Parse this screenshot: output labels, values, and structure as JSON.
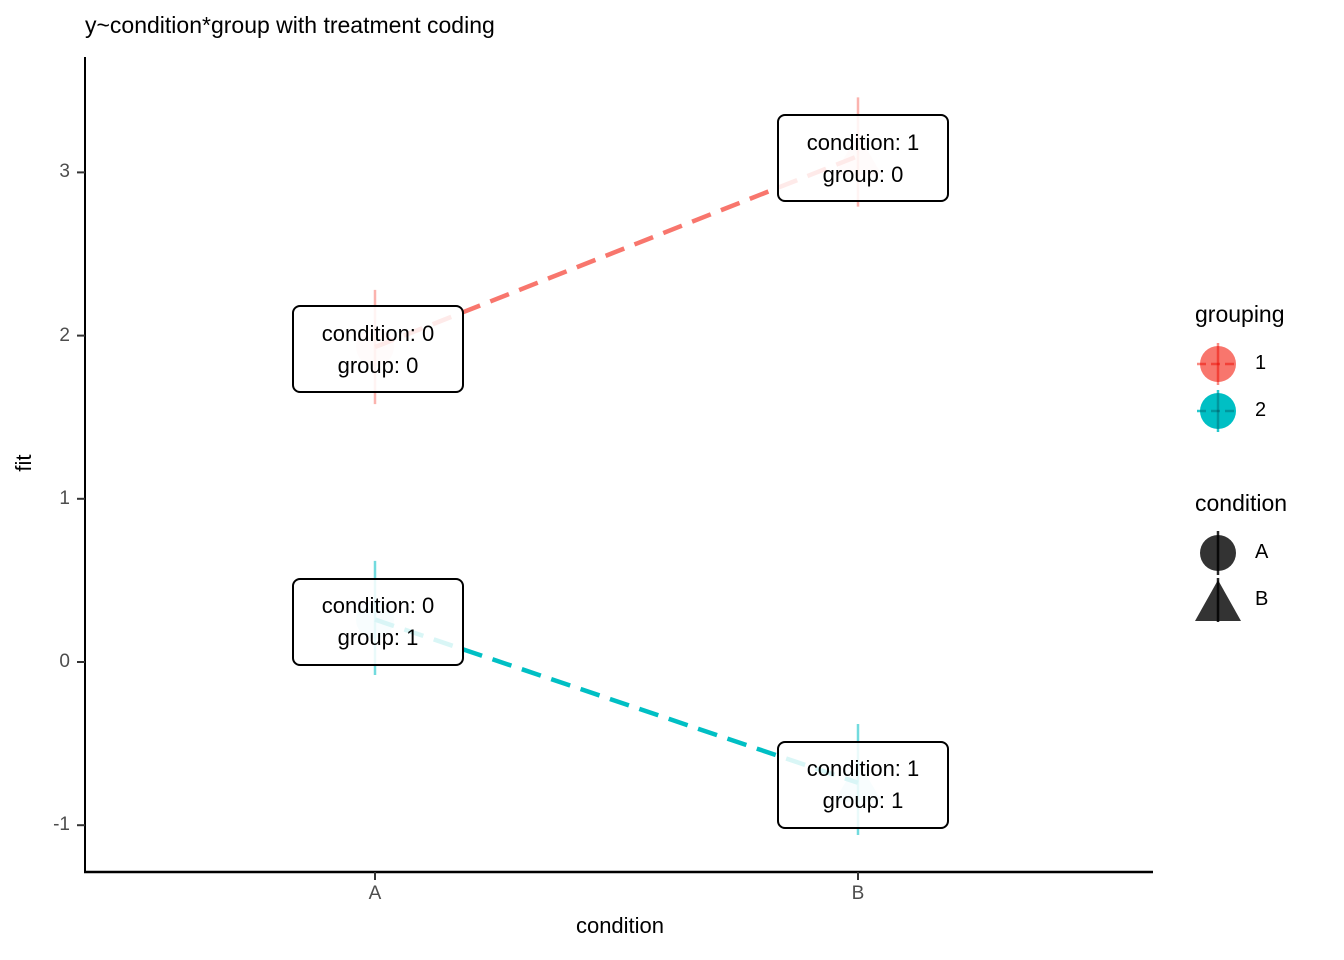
{
  "chart_data": {
    "type": "line",
    "title": "y~condition*group with treatment coding",
    "xlabel": "condition",
    "ylabel": "fit",
    "x_categories": [
      "A",
      "B"
    ],
    "y_ticks": [
      "3",
      "2",
      "1",
      "0",
      "-1"
    ],
    "ylim": [
      -1.35,
      3.55
    ],
    "grid": "off",
    "legend_position": "right",
    "line_style": "dashed",
    "series": [
      {
        "name": "grouping 1 (group: 0)",
        "color": "#F8766D",
        "points": [
          {
            "x": "A",
            "shape": "circle",
            "fit": 1.93,
            "ci_low": 1.58,
            "ci_high": 2.28
          },
          {
            "x": "B",
            "shape": "triangle",
            "fit": 3.1,
            "ci_low": 2.79,
            "ci_high": 3.46
          }
        ]
      },
      {
        "name": "grouping 2 (group: 1)",
        "color": "#00BFC4",
        "points": [
          {
            "x": "A",
            "shape": "circle",
            "fit": 0.26,
            "ci_low": -0.08,
            "ci_high": 0.62
          },
          {
            "x": "B",
            "shape": "triangle",
            "fit": -0.74,
            "ci_low": -1.06,
            "ci_high": -0.38
          }
        ]
      }
    ],
    "annotations": [
      {
        "x": "A",
        "y": 1.93,
        "line1": "condition: 0",
        "line2": "group: 0"
      },
      {
        "x": "B",
        "y": 3.1,
        "line1": "condition: 1",
        "line2": "group: 0"
      },
      {
        "x": "A",
        "y": 0.26,
        "line1": "condition: 0",
        "line2": "group: 1"
      },
      {
        "x": "B",
        "y": -0.74,
        "line1": "condition: 1",
        "line2": "group: 1"
      }
    ]
  },
  "legend": {
    "grouping": {
      "title": "grouping",
      "items": [
        {
          "label": "1",
          "color": "#F8766D"
        },
        {
          "label": "2",
          "color": "#00BFC4"
        }
      ]
    },
    "condition": {
      "title": "condition",
      "glyph_color": "#333333",
      "items": [
        {
          "label": "A",
          "shape": "circle"
        },
        {
          "label": "B",
          "shape": "triangle"
        }
      ]
    }
  },
  "colors": {
    "axis": "#000000",
    "tick_label": "#4D4D4D",
    "annotation_border": "#000000",
    "background": "#FFFFFF"
  }
}
